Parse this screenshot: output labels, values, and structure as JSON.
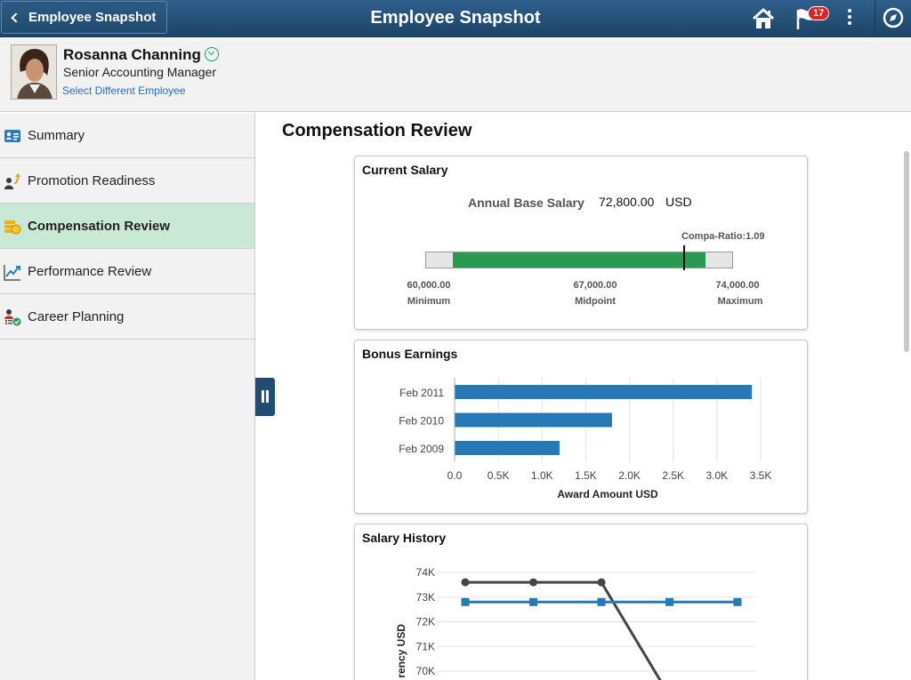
{
  "header": {
    "back_label": "Employee Snapshot",
    "title": "Employee Snapshot",
    "notification_count": "17"
  },
  "employee": {
    "name": "Rosanna Channing",
    "job_title": "Senior Accounting Manager",
    "select_link": "Select Different Employee"
  },
  "sidebar": {
    "items": [
      {
        "label": "Summary",
        "icon": "profile-card-icon"
      },
      {
        "label": "Promotion Readiness",
        "icon": "promotion-icon"
      },
      {
        "label": "Compensation Review",
        "icon": "coins-icon",
        "active": true
      },
      {
        "label": "Performance Review",
        "icon": "trend-chart-icon"
      },
      {
        "label": "Career Planning",
        "icon": "career-plan-icon"
      }
    ]
  },
  "main": {
    "title": "Compensation Review"
  },
  "current_salary": {
    "title": "Current Salary",
    "annual_label": "Annual Base Salary",
    "annual_value": "72,800.00",
    "currency": "USD",
    "compa_ratio": "Compa-Ratio:1.09",
    "min_value": "60,000.00",
    "min_label": "Minimum",
    "mid_value": "67,000.00",
    "mid_label": "Midpoint",
    "max_value": "74,000.00",
    "max_label": "Maximum",
    "range": {
      "min": 60000,
      "max": 74000,
      "current": 72800,
      "scale_min": 58500,
      "scale_max": 75500
    },
    "fill_color": "#2a9a52"
  },
  "chart_data": [
    {
      "type": "bar",
      "orientation": "horizontal",
      "title": "Bonus Earnings",
      "categories": [
        "Feb 2011",
        "Feb 2010",
        "Feb 2009"
      ],
      "values": [
        3400,
        1800,
        1200
      ],
      "xlabel": "Award Amount USD",
      "xlim": [
        0,
        3500
      ],
      "xticks": [
        "0.0",
        "0.5K",
        "1.0K",
        "1.5K",
        "2.0K",
        "2.5K",
        "3.0K",
        "3.5K"
      ],
      "color": "#2779b5",
      "grid": true
    },
    {
      "type": "line",
      "title": "Salary History",
      "ylabel": "rency USD",
      "yticks": [
        "74K",
        "73K",
        "72K",
        "71K",
        "70K"
      ],
      "ylim": [
        69800,
        74000
      ],
      "series": [
        {
          "color": "#444444",
          "marker": "circle",
          "x": [
            1,
            2,
            3,
            4
          ],
          "values": [
            73600,
            73600,
            73600,
            69000
          ]
        },
        {
          "color": "#2779b5",
          "marker": "square",
          "x": [
            1,
            2,
            3,
            4,
            5
          ],
          "values": [
            72800,
            72800,
            72800,
            72800,
            72800
          ]
        }
      ],
      "grid": true
    }
  ]
}
